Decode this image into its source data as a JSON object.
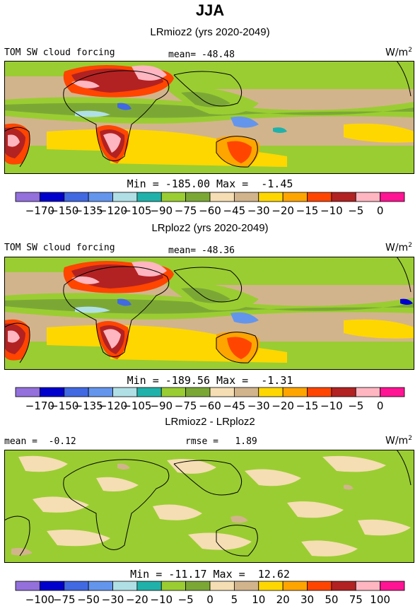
{
  "main_title": "JJA",
  "units": "W/m",
  "units_exp": "2",
  "colors": [
    "#9370db",
    "#0000cd",
    "#4169e1",
    "#6495ed",
    "#b0e0e6",
    "#20b2aa",
    "#9acd32",
    "#7ba835",
    "#f5deb3",
    "#d2b48c",
    "#ffd700",
    "#ffa500",
    "#ff4500",
    "#b22222",
    "#ffb6c1",
    "#ff1493"
  ],
  "chart_data": [
    {
      "type": "heatmap",
      "title": "LRmioz2 (yrs 2020-2049)",
      "field_label": "TOM SW cloud forcing",
      "stat_text": "mean= -48.48",
      "min_max_text": "Min = -185.00 Max =  -1.45",
      "min": -185.0,
      "max": -1.45,
      "mean": -48.48,
      "colorbar_ticks": [
        "-170",
        "-150",
        "-135",
        "-120",
        "-105",
        "-90",
        "-75",
        "-60",
        "-45",
        "-30",
        "-20",
        "-15",
        "-10",
        "-5",
        "0"
      ]
    },
    {
      "type": "heatmap",
      "title": "LRploz2 (yrs 2020-2049)",
      "field_label": "TOM SW cloud forcing",
      "stat_text": "mean= -48.36",
      "min_max_text": "Min = -189.56 Max =  -1.31",
      "min": -189.56,
      "max": -1.31,
      "mean": -48.36,
      "colorbar_ticks": [
        "-170",
        "-150",
        "-135",
        "-120",
        "-105",
        "-90",
        "-75",
        "-60",
        "-45",
        "-30",
        "-20",
        "-15",
        "-10",
        "-5",
        "0"
      ]
    },
    {
      "type": "heatmap",
      "title": "LRmioz2 - LRploz2",
      "stat_text": "mean =  -0.12",
      "rmse_text": "rmse =   1.89",
      "min_max_text": "Min = -11.17 Max =  12.62",
      "min": -11.17,
      "max": 12.62,
      "mean": -0.12,
      "rmse": 1.89,
      "colorbar_ticks": [
        "-100",
        "-75",
        "-50",
        "-30",
        "-20",
        "-10",
        "-5",
        "0",
        "5",
        "10",
        "20",
        "30",
        "50",
        "75",
        "100"
      ]
    }
  ]
}
